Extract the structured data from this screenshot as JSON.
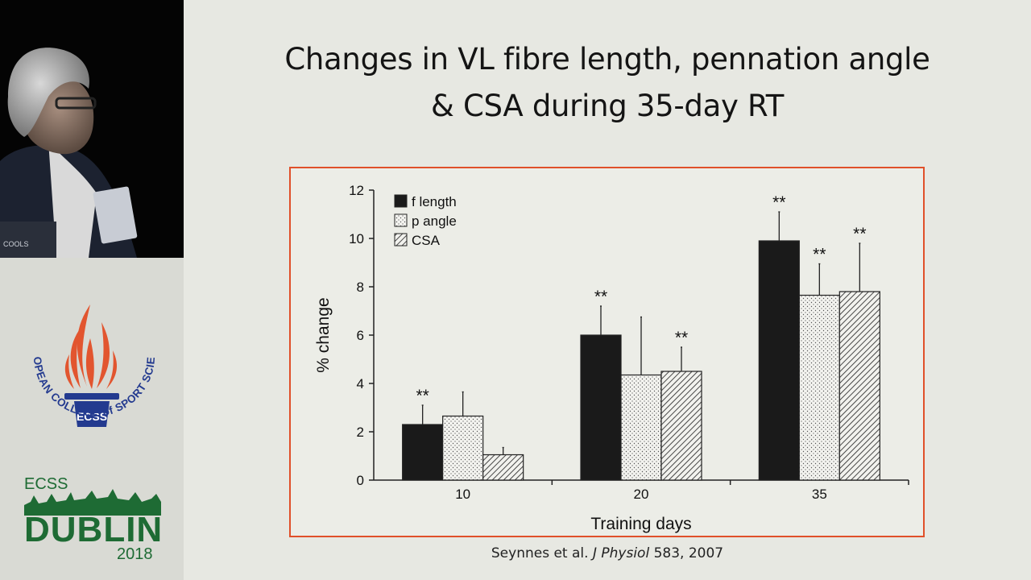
{
  "slide": {
    "title_line1": "Changes in VL fibre length, pennation angle",
    "title_line2": "& CSA during 35-day RT",
    "citation_authors": "Seynnes et al.",
    "citation_journal": "J Physiol",
    "citation_details": "583, 2007"
  },
  "sidebar": {
    "logo_text": "ECSS",
    "logo_ring_text": "EUROPEAN COLLEGE of SPORT SCIENCE",
    "event_label": "ECSS",
    "event_city": "DUBLIN",
    "event_year": "2018",
    "video_badge_text": "COOLS"
  },
  "chart_data": {
    "type": "bar",
    "xlabel": "Training days",
    "ylabel": "% change",
    "ylim": [
      0,
      12
    ],
    "yticks": [
      0,
      2,
      4,
      6,
      8,
      10,
      12
    ],
    "categories": [
      "10",
      "20",
      "35"
    ],
    "significance_marker": "**",
    "series": [
      {
        "name": "f length",
        "pattern": "solid",
        "values": [
          2.3,
          6.0,
          9.9
        ],
        "errors": [
          0.8,
          1.2,
          1.2
        ],
        "significant": [
          true,
          true,
          true
        ]
      },
      {
        "name": "p angle",
        "pattern": "dotted",
        "values": [
          2.65,
          4.35,
          7.65
        ],
        "errors": [
          1.0,
          2.4,
          1.3
        ],
        "significant": [
          false,
          false,
          true
        ]
      },
      {
        "name": "CSA",
        "pattern": "hatched",
        "values": [
          1.05,
          4.5,
          7.8
        ],
        "errors": [
          0.3,
          1.0,
          2.0
        ],
        "significant": [
          false,
          true,
          true
        ]
      }
    ],
    "legend_position": "top-left"
  },
  "colors": {
    "frame_border": "#e0502a",
    "bar_solid": "#1a1a1a",
    "logo_red": "#e2552f",
    "logo_blue": "#233a8f",
    "event_green": "#1e6b34"
  }
}
